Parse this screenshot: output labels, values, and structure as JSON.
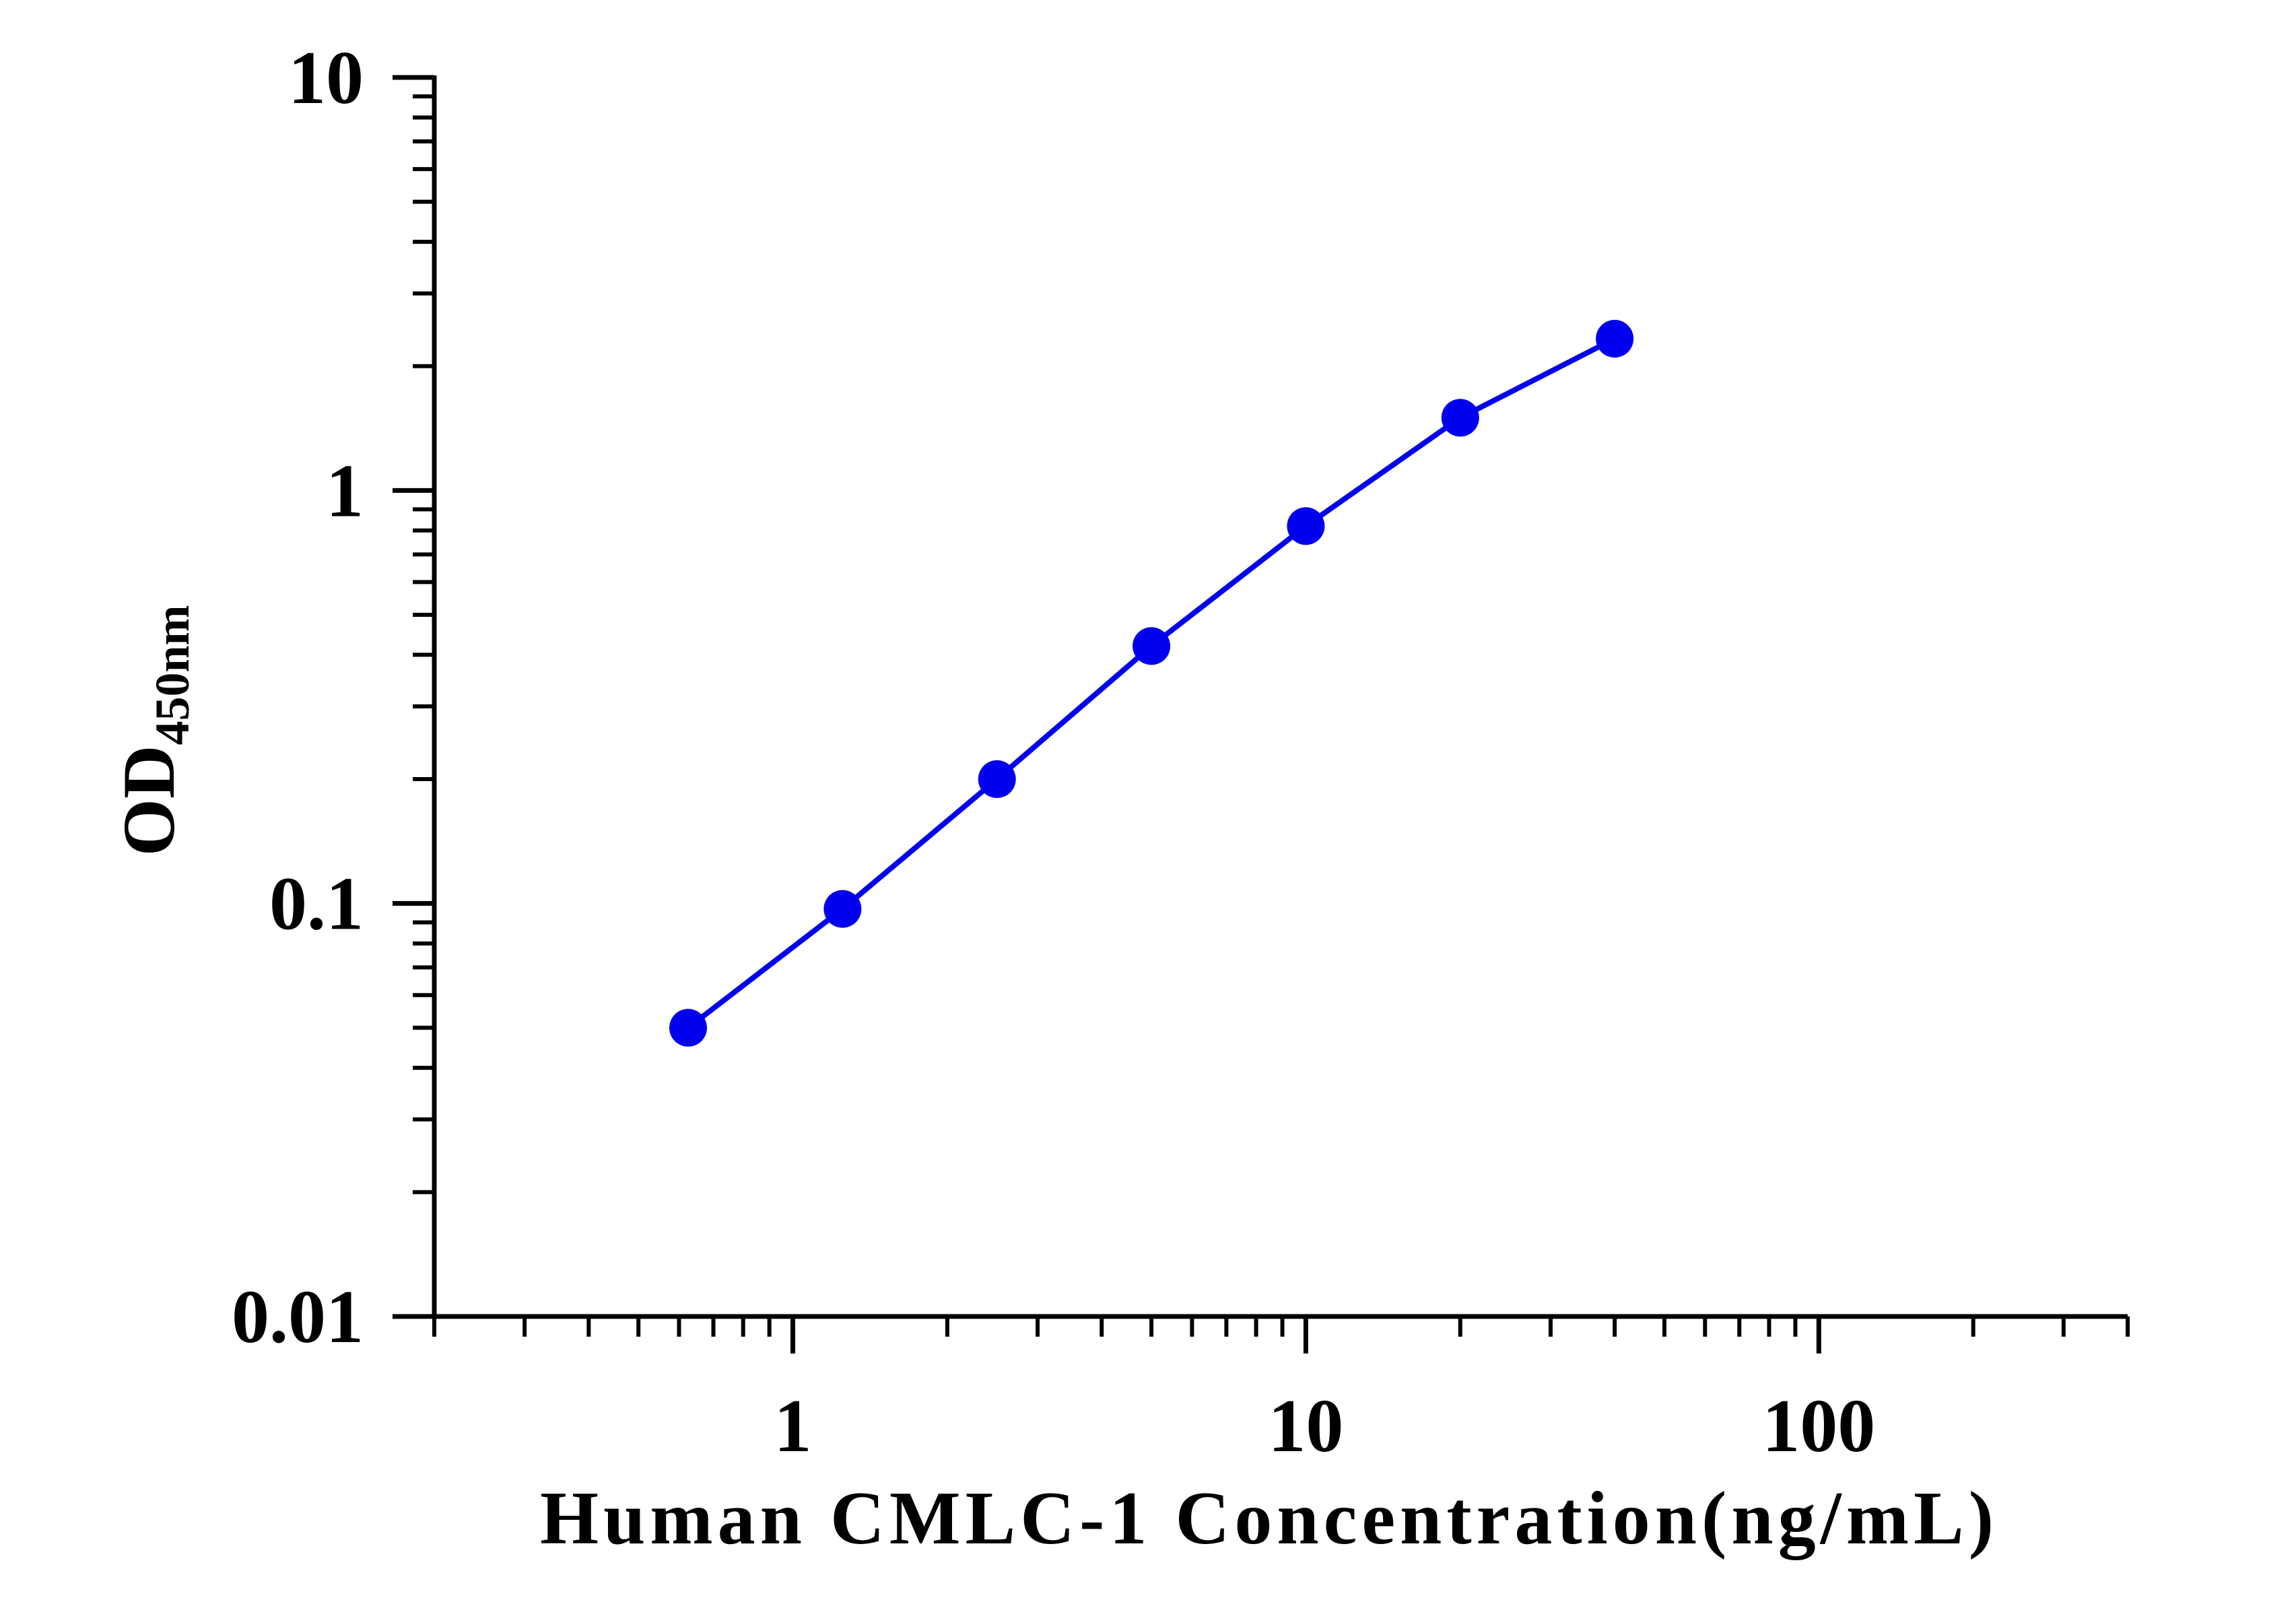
{
  "chart_data": {
    "type": "line",
    "title": "",
    "xlabel": "Human CMLC-1 Concentration(ng/mL)",
    "ylabel_main": "OD",
    "ylabel_subscript": "450nm",
    "xscale": "log",
    "yscale": "log",
    "xlim": [
      0.2,
      400
    ],
    "ylim": [
      0.01,
      10
    ],
    "x_tick_labels": [
      "1",
      "10",
      "100"
    ],
    "y_tick_labels": [
      "0.01",
      "0.1",
      "1",
      "10"
    ],
    "grid": false,
    "legend": "none",
    "series": [
      {
        "color": "#0000ee",
        "x": [
          0.625,
          1.25,
          2.5,
          5,
          10,
          20,
          40
        ],
        "y": [
          0.05,
          0.097,
          0.2,
          0.42,
          0.82,
          1.5,
          2.33
        ]
      }
    ]
  }
}
